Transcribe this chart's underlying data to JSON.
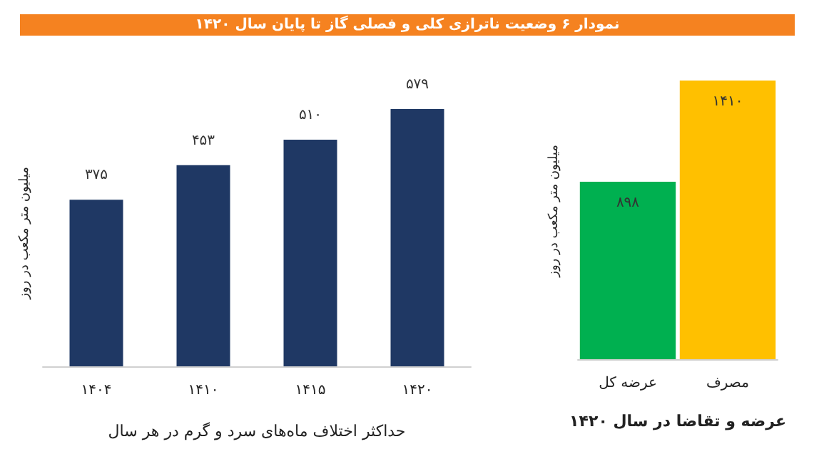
{
  "chart_data": [
    {
      "type": "bar",
      "title": "نمودار ۶ وضعیت ناترازی کلی و فصلی گاز تا پایان سال ۱۴۲۰",
      "ylabel": "میلیون متر مکعب در روز",
      "xlabel": "حداکثر اختلاف ماه‌های سرد و گرم در هر سال",
      "categories": [
        "۱۴۰۴",
        "۱۴۱۰",
        "۱۴۱۵",
        "۱۴۲۰"
      ],
      "values": [
        375,
        453,
        510,
        579
      ],
      "value_labels": [
        "۳۷۵",
        "۴۵۳",
        "۵۱۰",
        "۵۷۹"
      ],
      "color": "#1f3864",
      "tick_labels": "x"
    },
    {
      "type": "bar",
      "ylabel": "میلیون متر مکعب در روز",
      "xlabel": "عرضه و تقاضا در سال ۱۴۲۰",
      "categories": [
        "عرضه کل",
        "مصرف"
      ],
      "values": [
        898,
        1410
      ],
      "value_labels": [
        "۸۹۸",
        "۱۴۱۰"
      ],
      "colors": [
        "#00b050",
        "#ffc000"
      ],
      "tick_labels": "x"
    }
  ]
}
